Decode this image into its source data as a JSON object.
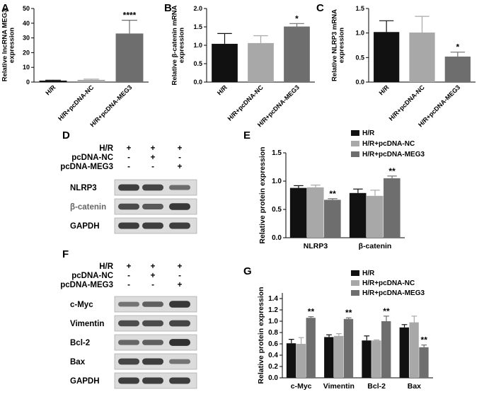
{
  "colors": {
    "hr": "#111111",
    "nc": "#a8a8a8",
    "meg3": "#6e6e6e",
    "axis": "#000000",
    "blot_band": "#2a2a2a",
    "blot_bg": "#dcdcdc"
  },
  "panels": {
    "A": "A",
    "B": "B",
    "C": "C",
    "D": "D",
    "E": "E",
    "F": "F",
    "G": "G"
  },
  "chart_data": [
    {
      "panel": "A",
      "type": "bar",
      "categories": [
        "H/R",
        "H/R+pcDNA-NC",
        "H/R+pcDNA-MEG3"
      ],
      "values": [
        1.0,
        1.5,
        33
      ],
      "errors": [
        0.3,
        0.5,
        9
      ],
      "annotations": [
        "",
        "",
        "****"
      ],
      "ylabel": "Relative lncRNA MEG3\nexpression",
      "ylim": [
        0,
        50
      ],
      "yticks": [
        "0",
        "10",
        "20",
        "30",
        "40",
        "50"
      ],
      "grid": false
    },
    {
      "panel": "B",
      "type": "bar",
      "categories": [
        "H/R",
        "H/R+pcDNA-NC",
        "H/R+pcDNA-MEG3"
      ],
      "values": [
        1.04,
        1.06,
        1.51
      ],
      "errors": [
        0.28,
        0.2,
        0.08
      ],
      "annotations": [
        "",
        "",
        "*"
      ],
      "ylabel": "Relative β-catenin mRNA\nexpression",
      "ylim": [
        0,
        2.0
      ],
      "yticks": [
        "0.0",
        "0.5",
        "1.0",
        "1.5",
        "2.0"
      ],
      "grid": false
    },
    {
      "panel": "C",
      "type": "bar",
      "categories": [
        "H/R",
        "H/R+pcDNA-NC",
        "H/R+pcDNA-MEG3"
      ],
      "values": [
        1.02,
        1.01,
        0.52
      ],
      "errors": [
        0.23,
        0.33,
        0.09
      ],
      "annotations": [
        "",
        "",
        "*"
      ],
      "ylabel": "Relative NLRP3 mRNA\nexpression",
      "ylim": [
        0,
        1.5
      ],
      "yticks": [
        "0.0",
        "0.5",
        "1.0",
        "1.5"
      ],
      "grid": false
    },
    {
      "panel": "E",
      "type": "bar",
      "categories": [
        "NLRP3",
        "β-catenin"
      ],
      "series": [
        {
          "name": "H/R",
          "values": [
            0.88,
            0.79
          ],
          "errors": [
            0.04,
            0.07
          ]
        },
        {
          "name": "H/R+pcDNA-NC",
          "values": [
            0.89,
            0.74
          ],
          "errors": [
            0.04,
            0.1
          ]
        },
        {
          "name": "H/R+pcDNA-MEG3",
          "values": [
            0.67,
            1.05
          ],
          "errors": [
            0.02,
            0.04
          ]
        }
      ],
      "annotations": [
        [
          "",
          "",
          "**"
        ],
        [
          "",
          "",
          "**"
        ]
      ],
      "ylabel": "Relative protein expression",
      "ylim": [
        0,
        1.5
      ],
      "yticks": [
        "0.0",
        "0.5",
        "1.0",
        "1.5"
      ],
      "legend": "top-right",
      "grid": false
    },
    {
      "panel": "G",
      "type": "bar",
      "categories": [
        "c-Myc",
        "Vimentin",
        "Bcl-2",
        "Bax"
      ],
      "series": [
        {
          "name": "H/R",
          "values": [
            0.61,
            0.72,
            0.66,
            0.89
          ],
          "errors": [
            0.07,
            0.04,
            0.08,
            0.05
          ]
        },
        {
          "name": "H/R+pcDNA-NC",
          "values": [
            0.6,
            0.74,
            0.66,
            0.98
          ],
          "errors": [
            0.11,
            0.04,
            0.01,
            0.11
          ]
        },
        {
          "name": "H/R+pcDNA-MEG3",
          "values": [
            1.06,
            1.04,
            1.0,
            0.54
          ],
          "errors": [
            0.02,
            0.02,
            0.09,
            0.04
          ]
        }
      ],
      "annotations": [
        [
          "",
          "",
          "**"
        ],
        [
          "",
          "",
          "**"
        ],
        [
          "",
          "",
          "**"
        ],
        [
          "",
          "",
          "**"
        ]
      ],
      "ylabel": "Relative protein expression",
      "ylim": [
        0,
        1.5
      ],
      "yticks": [
        "0.0",
        "0.2",
        "0.4",
        "0.6",
        "0.8",
        "1.0",
        "1.2",
        "1.4"
      ],
      "legend": "top-right",
      "grid": false
    }
  ],
  "blots": {
    "D": {
      "conditions": [
        {
          "label": "H/R",
          "marks": [
            "+",
            "+",
            "+"
          ]
        },
        {
          "label": "pcDNA-NC",
          "marks": [
            "-",
            "+",
            "-"
          ]
        },
        {
          "label": "pcDNA-MEG3",
          "marks": [
            "-",
            "-",
            "+"
          ]
        }
      ],
      "rows": [
        {
          "label": "NLRP3",
          "intensity": [
            0.85,
            0.8,
            0.5
          ],
          "label_color": "#000000"
        },
        {
          "label": "β-catenin",
          "intensity": [
            0.75,
            0.65,
            0.9
          ],
          "label_color": "#666666"
        },
        {
          "label": "GAPDH",
          "intensity": [
            0.85,
            0.85,
            0.85
          ],
          "label_color": "#000000"
        }
      ]
    },
    "F": {
      "conditions": [
        {
          "label": "H/R",
          "marks": [
            "+",
            "+",
            "+"
          ]
        },
        {
          "label": "pcDNA-NC",
          "marks": [
            "-",
            "+",
            "-"
          ]
        },
        {
          "label": "pcDNA-MEG3",
          "marks": [
            "-",
            "-",
            "+"
          ]
        }
      ],
      "rows": [
        {
          "label": "c-Myc",
          "intensity": [
            0.45,
            0.6,
            0.9
          ],
          "label_color": "#000000"
        },
        {
          "label": "Vimentin",
          "intensity": [
            0.75,
            0.75,
            0.8
          ],
          "label_color": "#000000"
        },
        {
          "label": "Bcl-2",
          "intensity": [
            0.55,
            0.6,
            0.95
          ],
          "label_color": "#000000"
        },
        {
          "label": "Bax",
          "intensity": [
            0.8,
            0.85,
            0.45
          ],
          "label_color": "#000000"
        },
        {
          "label": "GAPDH",
          "intensity": [
            0.85,
            0.85,
            0.85
          ],
          "label_color": "#000000"
        }
      ]
    }
  }
}
